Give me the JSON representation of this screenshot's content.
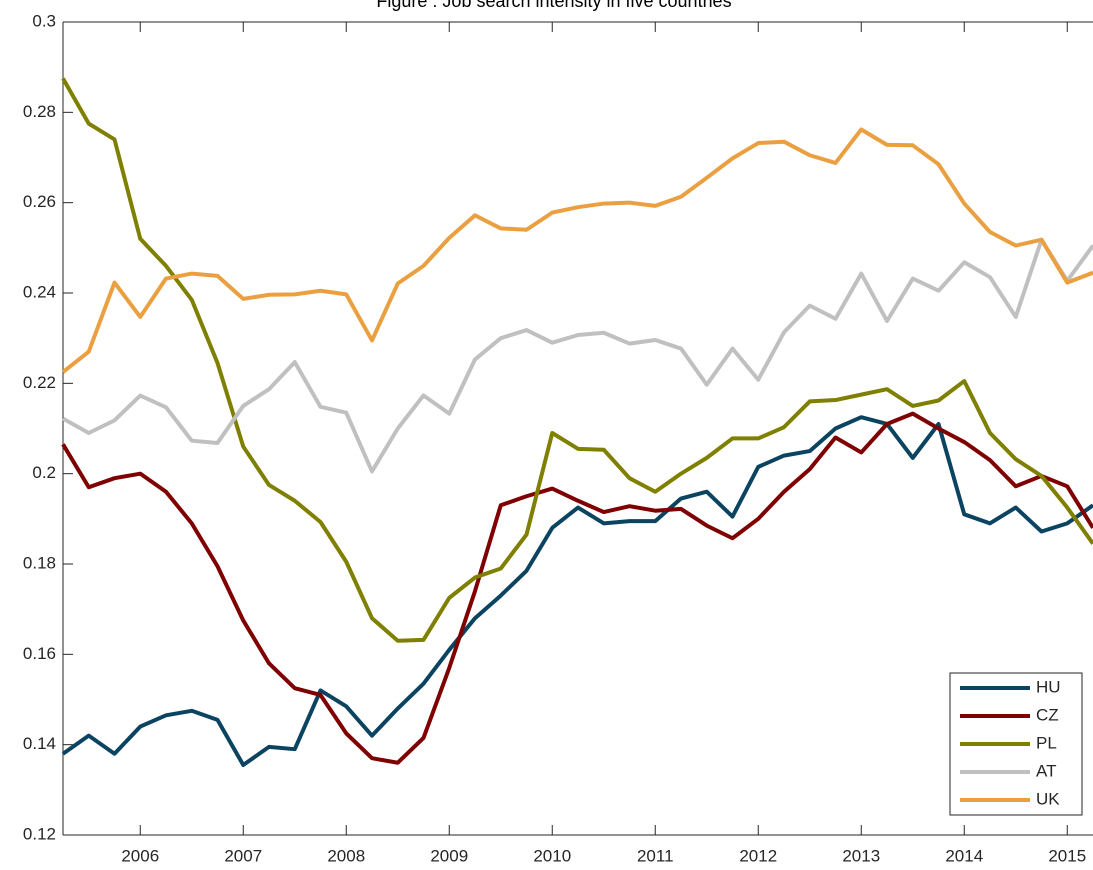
{
  "chart_data": {
    "type": "line",
    "title": "Figure : Job search intensity in five countries",
    "x": [
      2005.25,
      2005.5,
      2005.75,
      2006,
      2006.25,
      2006.5,
      2006.75,
      2007,
      2007.25,
      2007.5,
      2007.75,
      2008,
      2008.25,
      2008.5,
      2008.75,
      2009,
      2009.25,
      2009.5,
      2009.75,
      2010,
      2010.25,
      2010.5,
      2010.75,
      2011,
      2011.25,
      2011.5,
      2011.75,
      2012,
      2012.25,
      2012.5,
      2012.75,
      2013,
      2013.25,
      2013.5,
      2013.75,
      2014,
      2014.25,
      2014.5,
      2014.75,
      2015,
      2015.25
    ],
    "series": [
      {
        "name": "HU",
        "color": "#0b4460",
        "values": [
          0.138,
          0.142,
          0.138,
          0.144,
          0.1465,
          0.1475,
          0.1455,
          0.1355,
          0.1395,
          0.139,
          0.152,
          0.1485,
          0.142,
          0.148,
          0.1535,
          0.161,
          0.168,
          0.173,
          0.1785,
          0.188,
          0.1925,
          0.189,
          0.1895,
          0.1895,
          0.1945,
          0.196,
          0.1905,
          0.2015,
          0.204,
          0.205,
          0.21,
          0.2125,
          0.211,
          0.2035,
          0.211,
          0.191,
          0.189,
          0.1925,
          0.1872,
          0.189,
          0.193
        ]
      },
      {
        "name": "CZ",
        "color": "#7f0000",
        "values": [
          0.2065,
          0.197,
          0.199,
          0.2,
          0.196,
          0.189,
          0.1795,
          0.1675,
          0.158,
          0.1525,
          0.151,
          0.1425,
          0.137,
          0.136,
          0.1415,
          0.157,
          0.174,
          0.193,
          0.195,
          0.1967,
          0.194,
          0.1915,
          0.1928,
          0.1918,
          0.1922,
          0.1885,
          0.1857,
          0.19,
          0.196,
          0.201,
          0.208,
          0.2047,
          0.211,
          0.2133,
          0.21,
          0.207,
          0.203,
          0.1972,
          0.1995,
          0.1972,
          0.188
        ]
      },
      {
        "name": "PL",
        "color": "#7f7f00",
        "values": [
          0.2875,
          0.2775,
          0.274,
          0.252,
          0.246,
          0.2385,
          0.2245,
          0.206,
          0.1975,
          0.194,
          0.1893,
          0.1805,
          0.168,
          0.163,
          0.1632,
          0.1725,
          0.177,
          0.179,
          0.1865,
          0.209,
          0.2055,
          0.2053,
          0.199,
          0.196,
          0.2,
          0.2035,
          0.2078,
          0.2078,
          0.2103,
          0.216,
          0.2163,
          0.2175,
          0.2187,
          0.215,
          0.2162,
          0.2205,
          0.209,
          0.2032,
          0.1995,
          0.1925,
          0.1845
        ]
      },
      {
        "name": "AT",
        "color": "#c0c0c0",
        "values": [
          0.2122,
          0.209,
          0.2118,
          0.2173,
          0.2147,
          0.2073,
          0.2068,
          0.215,
          0.2187,
          0.2247,
          0.2148,
          0.2135,
          0.2005,
          0.21,
          0.2173,
          0.2133,
          0.2253,
          0.23,
          0.2318,
          0.229,
          0.2307,
          0.2312,
          0.2288,
          0.2296,
          0.2277,
          0.2197,
          0.2277,
          0.2208,
          0.2313,
          0.2372,
          0.2343,
          0.2443,
          0.2338,
          0.2432,
          0.2405,
          0.2468,
          0.2435,
          0.2347,
          0.2518,
          0.2427,
          0.2505
        ]
      },
      {
        "name": "UK",
        "color": "#eaa040",
        "values": [
          0.2225,
          0.227,
          0.2423,
          0.2347,
          0.2432,
          0.2443,
          0.2438,
          0.2387,
          0.2396,
          0.2397,
          0.2405,
          0.2397,
          0.2295,
          0.2421,
          0.246,
          0.2522,
          0.2572,
          0.2543,
          0.254,
          0.2578,
          0.259,
          0.2598,
          0.26,
          0.2593,
          0.2613,
          0.2655,
          0.2698,
          0.2732,
          0.2735,
          0.2705,
          0.2688,
          0.2762,
          0.2728,
          0.2727,
          0.2685,
          0.2598,
          0.2535,
          0.2505,
          0.2518,
          0.2423,
          0.2445
        ]
      }
    ],
    "xlim": [
      2005.25,
      2015.25
    ],
    "xticks": [
      2006,
      2007,
      2008,
      2009,
      2010,
      2011,
      2012,
      2013,
      2014,
      2015
    ],
    "ylim": [
      0.12,
      0.3
    ],
    "yticks": [
      0.12,
      0.14,
      0.16,
      0.18,
      0.2,
      0.22,
      0.24,
      0.26,
      0.28,
      0.3
    ],
    "grid": false,
    "legend": "lower right"
  }
}
